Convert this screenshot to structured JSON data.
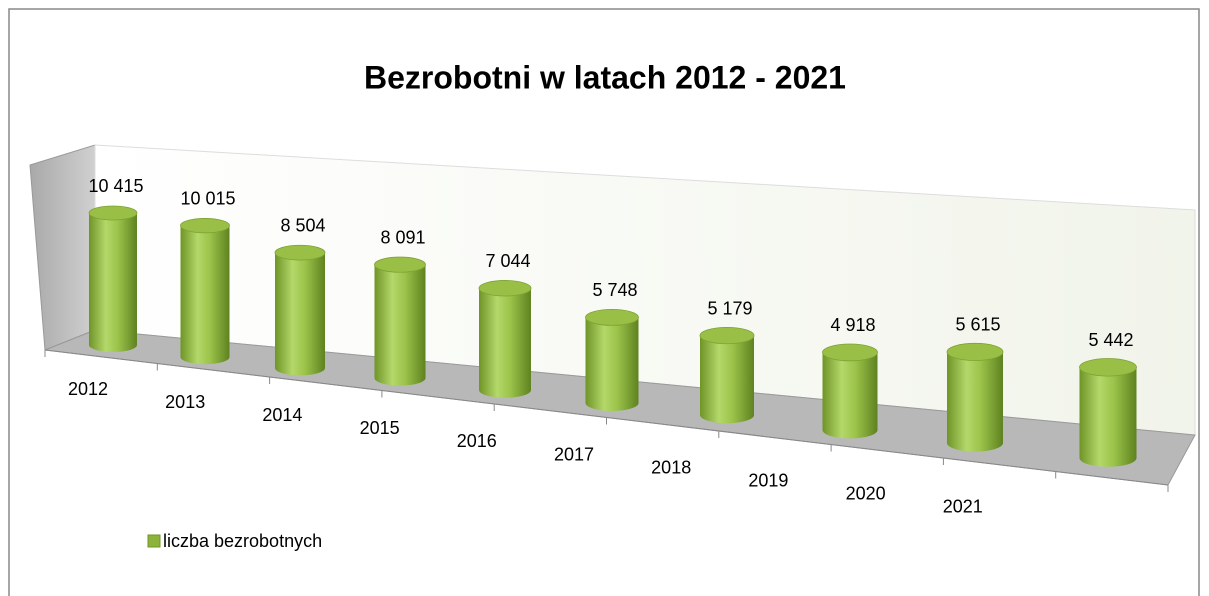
{
  "chart_data": {
    "type": "bar3d",
    "title": "Bezrobotni w latach 2012 - 2021",
    "categories": [
      "2012",
      "2013",
      "2014",
      "2015",
      "2016",
      "2017",
      "2018",
      "2019",
      "2020",
      "2021"
    ],
    "series": [
      {
        "name": "liczba bezrobotnych",
        "color": "#8db33a",
        "values": [
          10415,
          10015,
          8504,
          8091,
          7044,
          5748,
          5179,
          4918,
          5615,
          5442
        ],
        "value_labels": [
          "10 415",
          "10 015",
          "8 504",
          "8 091",
          "7 044",
          "5 748",
          "5 179",
          "4 918",
          "5 615",
          "5 442"
        ]
      }
    ],
    "legend": "bottom-left"
  }
}
